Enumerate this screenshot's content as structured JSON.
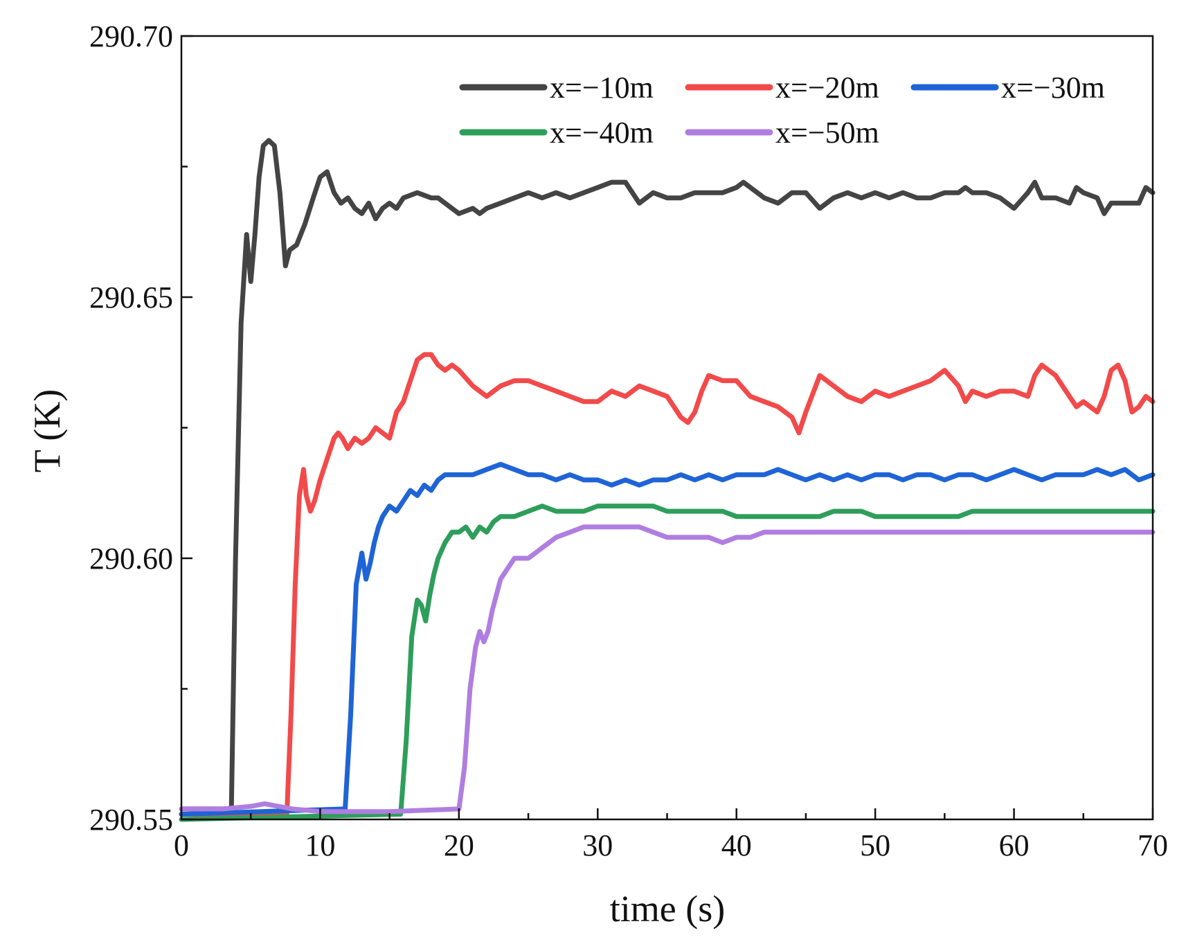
{
  "chart_data": {
    "type": "line",
    "title": "",
    "xlabel": "time (s)",
    "ylabel": "T (K)",
    "xlim": [
      0,
      70
    ],
    "ylim": [
      290.55,
      290.7
    ],
    "x_ticks": [
      "0",
      "10",
      "20",
      "30",
      "40",
      "50",
      "60",
      "70"
    ],
    "x_tick_values": [
      0,
      10,
      20,
      30,
      40,
      50,
      60,
      70
    ],
    "x_minor_ticks": [
      5,
      15,
      25,
      35,
      45,
      55,
      65
    ],
    "y_ticks": [
      "290.55",
      "290.60",
      "290.65",
      "290.70"
    ],
    "y_tick_values": [
      290.55,
      290.6,
      290.65,
      290.7
    ],
    "y_minor_ticks": [
      290.575,
      290.625,
      290.675
    ],
    "grid": false,
    "legend_position": "top-right",
    "series": [
      {
        "name": "x=−10m",
        "color": "#444444",
        "x": [
          0,
          3.6,
          3.9,
          4.3,
          4.7,
          5.0,
          5.3,
          5.6,
          5.9,
          6.3,
          6.7,
          7.1,
          7.5,
          7.8,
          8.3,
          8.9,
          9.5,
          10.0,
          10.5,
          11.0,
          11.5,
          12.0,
          12.5,
          13.0,
          13.5,
          14.0,
          14.5,
          15.0,
          15.5,
          16.0,
          17.0,
          18.0,
          18.5,
          19.0,
          19.5,
          20.0,
          21.0,
          21.5,
          22.0,
          23.0,
          24.0,
          25.0,
          26.0,
          27.0,
          28.0,
          29.0,
          30.0,
          31.0,
          32.0,
          33.0,
          34.0,
          35.0,
          36.0,
          37.0,
          38.0,
          39.0,
          40.0,
          40.5,
          41.0,
          42.0,
          43.0,
          44.0,
          45.0,
          46.0,
          47.0,
          48.0,
          49.0,
          50.0,
          51.0,
          52.0,
          53.0,
          54.0,
          55.0,
          56.0,
          56.5,
          57.0,
          58.0,
          59.0,
          60.0,
          61.0,
          61.5,
          62.0,
          63.0,
          64.0,
          64.5,
          65.0,
          66.0,
          66.5,
          67.0,
          68.0,
          69.0,
          69.5,
          70.0
        ],
        "y": [
          290.552,
          290.552,
          290.6,
          290.645,
          290.662,
          290.653,
          290.662,
          290.673,
          290.679,
          290.68,
          290.679,
          290.67,
          290.656,
          290.659,
          290.66,
          290.664,
          290.669,
          290.673,
          290.674,
          290.67,
          290.668,
          290.669,
          290.667,
          290.666,
          290.668,
          290.665,
          290.667,
          290.668,
          290.667,
          290.669,
          290.67,
          290.669,
          290.669,
          290.668,
          290.667,
          290.666,
          290.667,
          290.666,
          290.667,
          290.668,
          290.669,
          290.67,
          290.669,
          290.67,
          290.669,
          290.67,
          290.671,
          290.672,
          290.672,
          290.668,
          290.67,
          290.669,
          290.669,
          290.67,
          290.67,
          290.67,
          290.671,
          290.672,
          290.671,
          290.669,
          290.668,
          290.67,
          290.67,
          290.667,
          290.669,
          290.67,
          290.669,
          290.67,
          290.669,
          290.67,
          290.669,
          290.669,
          290.67,
          290.67,
          290.671,
          290.67,
          290.67,
          290.669,
          290.667,
          290.67,
          290.672,
          290.669,
          290.669,
          290.668,
          290.671,
          290.67,
          290.669,
          290.666,
          290.668,
          290.668,
          290.668,
          290.671,
          290.67
        ]
      },
      {
        "name": "x=−20m",
        "color": "#f24a4a",
        "x": [
          0,
          7.6,
          7.9,
          8.2,
          8.5,
          8.8,
          9.0,
          9.3,
          9.6,
          10.0,
          10.5,
          11.0,
          11.3,
          11.6,
          12.0,
          12.5,
          13.0,
          13.5,
          14.0,
          14.5,
          15.0,
          15.5,
          16.0,
          16.5,
          17.0,
          17.5,
          18.0,
          18.5,
          19.0,
          19.5,
          20.0,
          21.0,
          22.0,
          23.0,
          24.0,
          25.0,
          26.0,
          27.0,
          28.0,
          29.0,
          30.0,
          31.0,
          32.0,
          33.0,
          34.0,
          35.0,
          35.5,
          36.0,
          36.5,
          37.0,
          37.5,
          38.0,
          39.0,
          40.0,
          41.0,
          42.0,
          43.0,
          44.0,
          44.5,
          45.0,
          46.0,
          46.5,
          47.0,
          48.0,
          49.0,
          50.0,
          51.0,
          52.0,
          53.0,
          54.0,
          55.0,
          56.0,
          56.5,
          57.0,
          58.0,
          59.0,
          60.0,
          61.0,
          61.5,
          62.0,
          63.0,
          63.5,
          64.0,
          64.5,
          65.0,
          66.0,
          66.5,
          67.0,
          67.5,
          68.0,
          68.5,
          69.0,
          69.5,
          70.0
        ],
        "y": [
          290.551,
          290.551,
          290.57,
          290.595,
          290.612,
          290.617,
          290.612,
          290.609,
          290.611,
          290.615,
          290.619,
          290.623,
          290.624,
          290.623,
          290.621,
          290.623,
          290.622,
          290.623,
          290.625,
          290.624,
          290.623,
          290.628,
          290.63,
          290.634,
          290.638,
          290.639,
          290.639,
          290.637,
          290.636,
          290.637,
          290.636,
          290.633,
          290.631,
          290.633,
          290.634,
          290.634,
          290.633,
          290.632,
          290.631,
          290.63,
          290.63,
          290.632,
          290.631,
          290.633,
          290.632,
          290.631,
          290.629,
          290.627,
          290.626,
          290.628,
          290.632,
          290.635,
          290.634,
          290.634,
          290.631,
          290.63,
          290.629,
          290.627,
          290.624,
          290.628,
          290.635,
          290.634,
          290.633,
          290.631,
          290.63,
          290.632,
          290.631,
          290.632,
          290.633,
          290.634,
          290.636,
          290.633,
          290.63,
          290.632,
          290.631,
          290.632,
          290.632,
          290.631,
          290.635,
          290.637,
          290.635,
          290.633,
          290.631,
          290.629,
          290.63,
          290.628,
          290.631,
          290.636,
          290.637,
          290.634,
          290.628,
          290.629,
          290.631,
          290.63
        ]
      },
      {
        "name": "x=−30m",
        "color": "#1f64d6",
        "x": [
          0,
          11.8,
          12.2,
          12.6,
          13.0,
          13.3,
          13.6,
          13.9,
          14.2,
          14.5,
          15.0,
          15.5,
          16.0,
          16.5,
          17.0,
          17.5,
          18.0,
          18.5,
          19.0,
          19.5,
          20.0,
          21.0,
          22.0,
          23.0,
          24.0,
          25.0,
          26.0,
          27.0,
          28.0,
          29.0,
          30.0,
          31.0,
          32.0,
          33.0,
          34.0,
          35.0,
          36.0,
          37.0,
          38.0,
          39.0,
          40.0,
          41.0,
          42.0,
          43.0,
          44.0,
          45.0,
          46.0,
          47.0,
          48.0,
          49.0,
          50.0,
          51.0,
          52.0,
          53.0,
          54.0,
          55.0,
          56.0,
          57.0,
          58.0,
          59.0,
          60.0,
          61.0,
          62.0,
          63.0,
          64.0,
          65.0,
          66.0,
          67.0,
          68.0,
          69.0,
          70.0
        ],
        "y": [
          290.551,
          290.552,
          290.57,
          290.595,
          290.601,
          290.596,
          290.599,
          290.603,
          290.606,
          290.608,
          290.61,
          290.609,
          290.611,
          290.613,
          290.612,
          290.614,
          290.613,
          290.615,
          290.616,
          290.616,
          290.616,
          290.616,
          290.617,
          290.618,
          290.617,
          290.616,
          290.616,
          290.615,
          290.616,
          290.615,
          290.615,
          290.614,
          290.615,
          290.614,
          290.615,
          290.615,
          290.616,
          290.615,
          290.616,
          290.615,
          290.616,
          290.616,
          290.616,
          290.617,
          290.616,
          290.615,
          290.616,
          290.615,
          290.616,
          290.615,
          290.616,
          290.616,
          290.615,
          290.616,
          290.616,
          290.615,
          290.616,
          290.616,
          290.615,
          290.616,
          290.617,
          290.616,
          290.615,
          290.616,
          290.616,
          290.616,
          290.617,
          290.616,
          290.617,
          290.615,
          290.616
        ]
      },
      {
        "name": "x=−40m",
        "color": "#2e9e5b",
        "x": [
          0,
          15.8,
          16.2,
          16.6,
          17.0,
          17.3,
          17.6,
          17.9,
          18.2,
          18.5,
          19.0,
          19.5,
          20.0,
          20.5,
          21.0,
          21.5,
          22.0,
          22.5,
          23.0,
          23.5,
          24.0,
          25.0,
          26.0,
          27.0,
          28.0,
          29.0,
          30.0,
          31.0,
          32.0,
          33.0,
          34.0,
          35.0,
          36.0,
          37.0,
          38.0,
          39.0,
          40.0,
          41.0,
          42.0,
          43.0,
          44.0,
          45.0,
          46.0,
          47.0,
          48.0,
          49.0,
          50.0,
          51.0,
          52.0,
          53.0,
          54.0,
          55.0,
          56.0,
          57.0,
          58.0,
          59.0,
          60.0,
          61.0,
          62.0,
          63.0,
          64.0,
          65.0,
          66.0,
          67.0,
          68.0,
          69.0,
          70.0
        ],
        "y": [
          290.55,
          290.551,
          290.565,
          290.585,
          290.592,
          290.591,
          290.588,
          290.593,
          290.597,
          290.6,
          290.603,
          290.605,
          290.605,
          290.606,
          290.604,
          290.606,
          290.605,
          290.607,
          290.608,
          290.608,
          290.608,
          290.609,
          290.61,
          290.609,
          290.609,
          290.609,
          290.61,
          290.61,
          290.61,
          290.61,
          290.61,
          290.609,
          290.609,
          290.609,
          290.609,
          290.609,
          290.608,
          290.608,
          290.608,
          290.608,
          290.608,
          290.608,
          290.608,
          290.609,
          290.609,
          290.609,
          290.608,
          290.608,
          290.608,
          290.608,
          290.608,
          290.608,
          290.608,
          290.609,
          290.609,
          290.609,
          290.609,
          290.609,
          290.609,
          290.609,
          290.609,
          290.609,
          290.609,
          290.609,
          290.609,
          290.609,
          290.609
        ]
      },
      {
        "name": "x=−50m",
        "color": "#b07ee0",
        "x": [
          0,
          3.0,
          5.0,
          6.0,
          8.0,
          10.0,
          15.0,
          20.0,
          20.4,
          20.8,
          21.2,
          21.5,
          21.8,
          22.1,
          22.4,
          22.7,
          23.0,
          23.5,
          24.0,
          24.5,
          25.0,
          25.5,
          26.0,
          26.5,
          27.0,
          28.0,
          29.0,
          30.0,
          31.0,
          32.0,
          33.0,
          34.0,
          35.0,
          36.0,
          37.0,
          38.0,
          39.0,
          40.0,
          41.0,
          42.0,
          43.0,
          44.0,
          45.0,
          46.0,
          47.0,
          48.0,
          49.0,
          50.0,
          51.0,
          52.0,
          53.0,
          54.0,
          55.0,
          56.0,
          57.0,
          58.0,
          59.0,
          60.0,
          61.0,
          62.0,
          63.0,
          64.0,
          65.0,
          66.0,
          67.0,
          68.0,
          69.0,
          70.0
        ],
        "y": [
          290.552,
          290.552,
          290.5525,
          290.553,
          290.552,
          290.5515,
          290.5515,
          290.552,
          290.56,
          290.575,
          290.583,
          290.586,
          290.584,
          290.586,
          290.59,
          290.593,
          290.596,
          290.598,
          290.6,
          290.6,
          290.6,
          290.601,
          290.602,
          290.603,
          290.604,
          290.605,
          290.606,
          290.606,
          290.606,
          290.606,
          290.606,
          290.605,
          290.604,
          290.604,
          290.604,
          290.604,
          290.603,
          290.604,
          290.604,
          290.605,
          290.605,
          290.605,
          290.605,
          290.605,
          290.605,
          290.605,
          290.605,
          290.605,
          290.605,
          290.605,
          290.605,
          290.605,
          290.605,
          290.605,
          290.605,
          290.605,
          290.605,
          290.605,
          290.605,
          290.605,
          290.605,
          290.605,
          290.605,
          290.605,
          290.605,
          290.605,
          290.605,
          290.605
        ]
      }
    ]
  }
}
